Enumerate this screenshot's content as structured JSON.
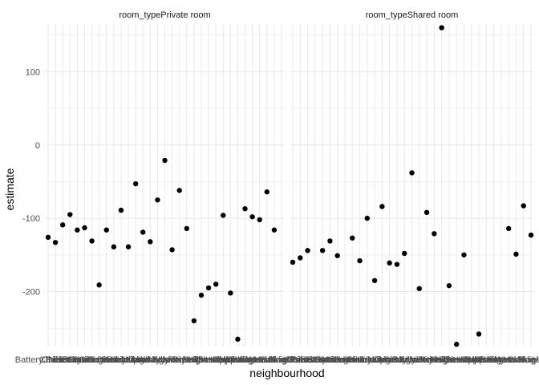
{
  "chart_data": {
    "type": "scatter",
    "xlabel": "neighbourhood",
    "ylabel": "estimate",
    "ylim": [
      -275,
      165
    ],
    "yticks": [
      100,
      0,
      -100,
      -200
    ],
    "grid": true,
    "point_color": "#000000",
    "grid_color": "#ebebeb",
    "x_tick_labels": [
      "Battery Park City",
      "Chelsea",
      "Chinatown",
      "Civic Center",
      "East Harlem",
      "East Village",
      "Financial District",
      "Flatiron District",
      "Gramercy",
      "Greenwich Village",
      "Harlem",
      "Hell's Kitchen",
      "Inwood",
      "Kips Bay",
      "Little Italy",
      "Lower East Side",
      "Midtown",
      "Morningside Heights",
      "Murray Hill",
      "NoHo",
      "Nolita",
      "Roosevelt Island",
      "SoHo",
      "Stuyvesant Town",
      "Theater District",
      "Tribeca",
      "Two Bridges",
      "Upper East Side",
      "Upper West Side",
      "Washington Heights",
      "West Village",
      "Marble Hill"
    ],
    "panels": [
      {
        "strip": "room_typePrivate room",
        "x": [
          1,
          2,
          3,
          4,
          5,
          6,
          7,
          8,
          9,
          10,
          11,
          12,
          13,
          14,
          15,
          16,
          17,
          18,
          19,
          20,
          21,
          22,
          23,
          24,
          25,
          26,
          27,
          28,
          29,
          30,
          31,
          32
        ],
        "y": [
          -126,
          -133,
          -109,
          -95,
          -116,
          -113,
          -131,
          -191,
          -116,
          -139,
          -89,
          -139,
          -53,
          -119,
          -132,
          -75,
          -21,
          -143,
          -62,
          -114,
          -240,
          -205,
          -195,
          -190,
          -96,
          -202,
          -265,
          -87,
          -98,
          -102,
          -64,
          -116
        ]
      },
      {
        "strip": "room_typeShared room",
        "x": [
          1,
          2,
          3,
          5,
          6,
          7,
          9,
          10,
          11,
          12,
          13,
          14,
          15,
          16,
          17,
          18,
          19,
          20,
          21,
          22,
          23,
          24,
          26,
          30,
          31,
          32
        ],
        "y": [
          -160,
          -154,
          -144,
          -144,
          -131,
          -151,
          -127,
          -158,
          -100,
          -185,
          -84,
          -161,
          -163,
          -148,
          -38,
          -196,
          -92,
          -121,
          160,
          -192,
          -272,
          -150,
          -258,
          -114,
          -149,
          -83
        ]
      }
    ],
    "extra_points_panel2": {
      "x": [
        33
      ],
      "y": [
        -123
      ]
    }
  }
}
